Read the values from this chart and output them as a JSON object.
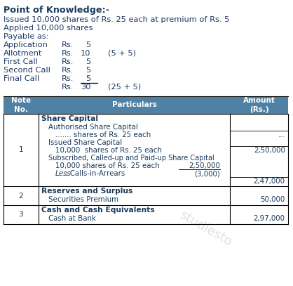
{
  "title": "Point of Knowledge:-",
  "intro_lines": [
    "Issued 10,000 shares of Rs. 25 each at premium of Rs. 5",
    "Applied 10,000 shares",
    "Payable as:"
  ],
  "payable_rows": [
    {
      "label": "Application",
      "rs": "Rs.",
      "val": "5",
      "note": ""
    },
    {
      "label": "Allotment",
      "rs": "Rs.",
      "val": "10",
      "note": "(5 + 5)"
    },
    {
      "label": "First Call",
      "rs": "Rs.",
      "val": "5",
      "note": ""
    },
    {
      "label": "Second Call",
      "rs": "Rs.",
      "val": "5",
      "note": ""
    },
    {
      "label": "Final Call",
      "rs": "Rs.",
      "val": "5",
      "note": ""
    }
  ],
  "total_row": {
    "rs": "Rs.",
    "val": "30",
    "note": "(25 + 5)"
  },
  "header_bg": "#4f81a4",
  "header_fg": "#ffffff",
  "dark": "#1a3a5c",
  "body_color": "#1f3864",
  "bg": "#ffffff",
  "watermark": "studiesto"
}
